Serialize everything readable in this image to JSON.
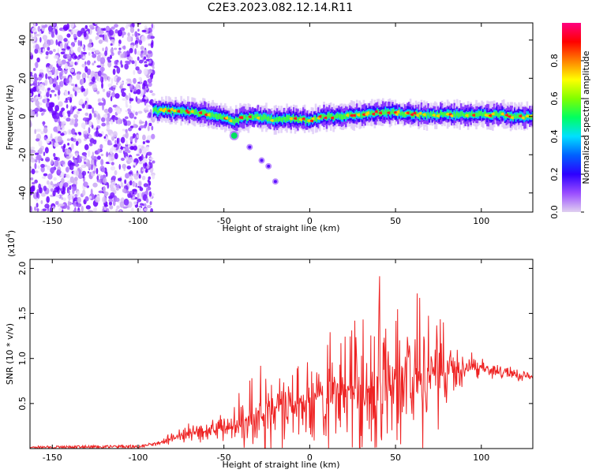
{
  "title": "C2E3.2023.082.12.14.R11",
  "colorbar": {
    "label": "Normalized spectral amplitude",
    "ticks": [
      "0.0",
      "0.2",
      "0.4",
      "0.6",
      "0.8"
    ],
    "colors": [
      "#e0d0f0",
      "#9a4dff",
      "#2d00ff",
      "#0060ff",
      "#00e0ff",
      "#00ff60",
      "#80ff00",
      "#ffff00",
      "#ff8000",
      "#ff0000",
      "#ff0080"
    ]
  },
  "chart_data": [
    {
      "type": "heatmap",
      "xlabel": "Height of straight line (km)",
      "ylabel": "Frequency (Hz)",
      "xlim": [
        -163,
        130
      ],
      "ylim": [
        -50,
        49
      ],
      "x_ticks": [
        "-150",
        "-100",
        "-50",
        "0",
        "50",
        "100"
      ],
      "y_ticks": [
        "-40",
        "-20",
        "0",
        "20",
        "40"
      ],
      "noise_region_x": [
        -163,
        -91
      ],
      "ridge": {
        "x": [
          -91,
          -85,
          -75,
          -65,
          -55,
          -48,
          -44,
          -40,
          -30,
          -20,
          -10,
          0,
          10,
          20,
          30,
          40,
          50,
          60,
          70,
          80,
          90,
          100,
          110,
          120,
          130
        ],
        "freq": [
          3,
          3,
          3,
          2,
          1,
          -1,
          -3,
          -1,
          0,
          -2,
          -1,
          -2,
          0,
          0,
          1,
          2,
          2,
          1,
          1,
          1,
          1,
          1,
          1,
          0,
          0
        ]
      },
      "branch": {
        "x": [
          -44,
          -35,
          -28,
          -24,
          -20
        ],
        "freq": [
          -10,
          -16,
          -23,
          -26,
          -34
        ]
      }
    },
    {
      "type": "line",
      "xlabel": "Height of straight line (km)",
      "ylabel": "SNR (10 * v/v)",
      "y_multiplier": "(x10",
      "y_multiplier_exp": "4",
      "xlim": [
        -163,
        130
      ],
      "ylim": [
        0,
        2.1
      ],
      "x_ticks": [
        "-150",
        "-100",
        "-50",
        "0",
        "50",
        "100"
      ],
      "y_ticks": [
        "0.5",
        "1.0",
        "1.5",
        "2.0"
      ],
      "series": [
        {
          "color": "#ee2222",
          "envelope_x": [
            -163,
            -100,
            -90,
            -80,
            -70,
            -60,
            -50,
            -40,
            -30,
            -20,
            -10,
            0,
            10,
            20,
            30,
            40,
            50,
            60,
            70,
            80,
            90,
            100,
            110,
            120,
            130
          ],
          "envelope_base": [
            0.01,
            0.02,
            0.05,
            0.12,
            0.18,
            0.2,
            0.22,
            0.3,
            0.4,
            0.45,
            0.5,
            0.55,
            0.6,
            0.62,
            0.65,
            0.7,
            0.75,
            0.78,
            0.8,
            0.85,
            0.9,
            0.9,
            0.85,
            0.82,
            0.8
          ],
          "envelope_spread": [
            0.0,
            0.0,
            0.02,
            0.08,
            0.12,
            0.15,
            0.2,
            0.4,
            0.55,
            0.6,
            0.6,
            0.7,
            0.85,
            1.0,
            1.2,
            1.3,
            1.4,
            1.25,
            0.9,
            0.5,
            0.2,
            0.12,
            0.1,
            0.1,
            0.08
          ]
        }
      ]
    }
  ]
}
